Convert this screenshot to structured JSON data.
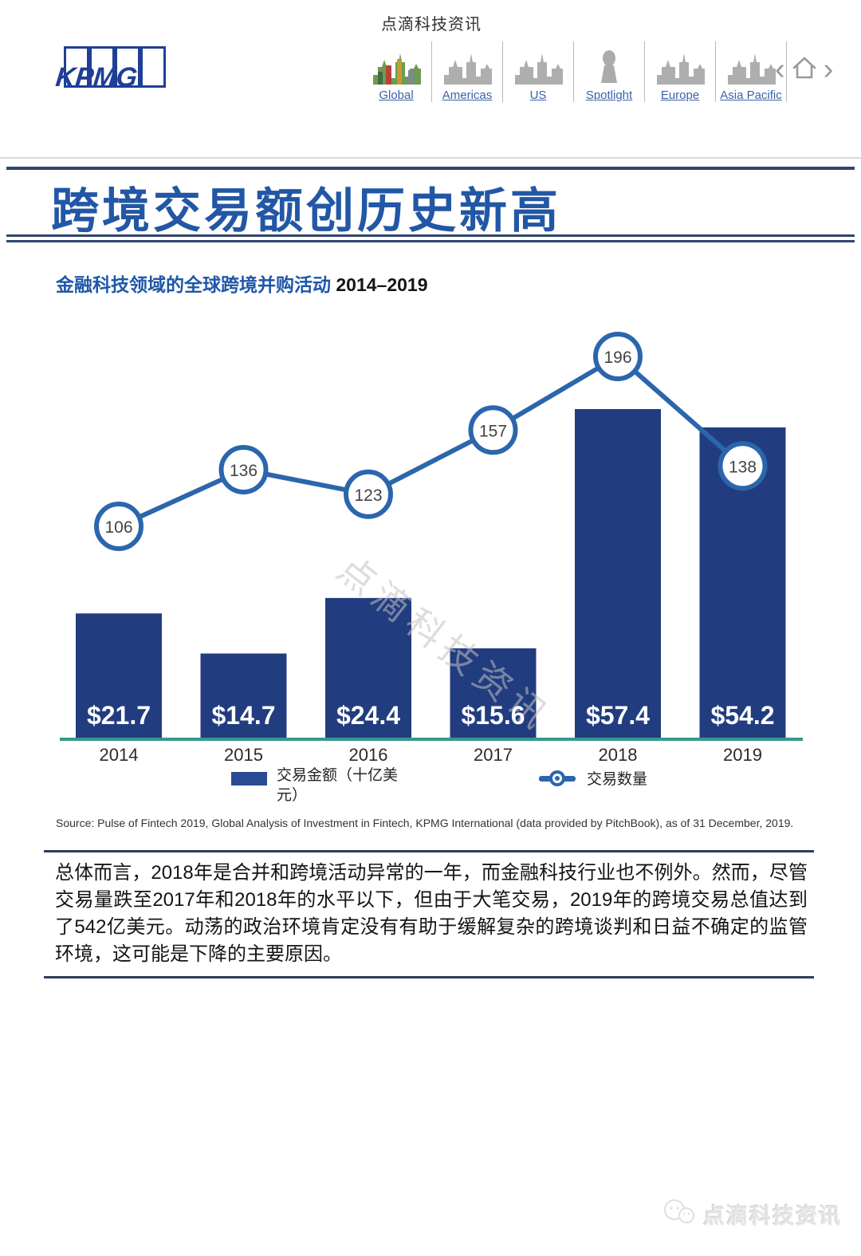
{
  "header": {
    "brand": "KPMG",
    "account_name": "点滴科技资讯",
    "nav": [
      {
        "label": "Global",
        "icon": "global-skyline-icon",
        "active": true
      },
      {
        "label": "Americas",
        "icon": "americas-skyline-icon",
        "active": false
      },
      {
        "label": "US",
        "icon": "us-skyline-icon",
        "active": false
      },
      {
        "label": "Spotlight",
        "icon": "spotlight-statue-icon",
        "active": false
      },
      {
        "label": "Europe",
        "icon": "europe-skyline-icon",
        "active": false
      },
      {
        "label": "Asia Pacific",
        "icon": "asia-pacific-skyline-icon",
        "active": false
      }
    ],
    "pager": {
      "prev": "‹",
      "home_icon": "home-icon",
      "next": "›"
    }
  },
  "title": "跨境交易额创历史新高",
  "subtitle": {
    "text": "金融科技领域的全球跨境并购活动",
    "range": "2014–2019"
  },
  "chart_data": {
    "type": "bar",
    "title": "金融科技领域的全球跨境并购活动 2014–2019",
    "categories": [
      "2014",
      "2015",
      "2016",
      "2017",
      "2018",
      "2019"
    ],
    "series": [
      {
        "name": "交易金额（十亿美元）",
        "type": "bar",
        "values": [
          21.7,
          14.7,
          24.4,
          15.6,
          57.4,
          54.2
        ],
        "labels": [
          "$21.7",
          "$14.7",
          "$24.4",
          "$15.6",
          "$57.4",
          "$54.2"
        ],
        "unit": "USD billions",
        "color": "#223c80"
      },
      {
        "name": "交易数量",
        "type": "line",
        "values": [
          106,
          136,
          123,
          157,
          196,
          138
        ],
        "color": "#2b66ad",
        "marker": "open-circle"
      }
    ],
    "ylabel": "",
    "xlabel": "",
    "grid": false,
    "legend_position": "bottom",
    "baseline_color": "#36988e",
    "bar_label_color": "#ffffff",
    "watermark": "点滴科技资讯"
  },
  "legend": {
    "bar_label_line1": "交易金额（十亿美",
    "bar_label_line2": "元）",
    "line_label": "交易数量"
  },
  "source": "Source: Pulse of Fintech 2019, Global Analysis of Investment in Fintech, KPMG International (data provided by PitchBook), as of 31 December, 2019.",
  "paragraph": "总体而言，2018年是合并和跨境活动异常的一年，而金融科技行业也不例外。然而，尽管交易量跌至2017年和2018年的水平以下，但由于大笔交易，2019年的跨境交易总值达到了542亿美元。动荡的政治环境肯定没有有助于缓解复杂的跨境谈判和日益不确定的监管环境，这可能是下降的主要原因。",
  "footer": {
    "watermark_text": "点滴科技资讯",
    "watermark_icon": "wechat-bubbles-icon"
  }
}
